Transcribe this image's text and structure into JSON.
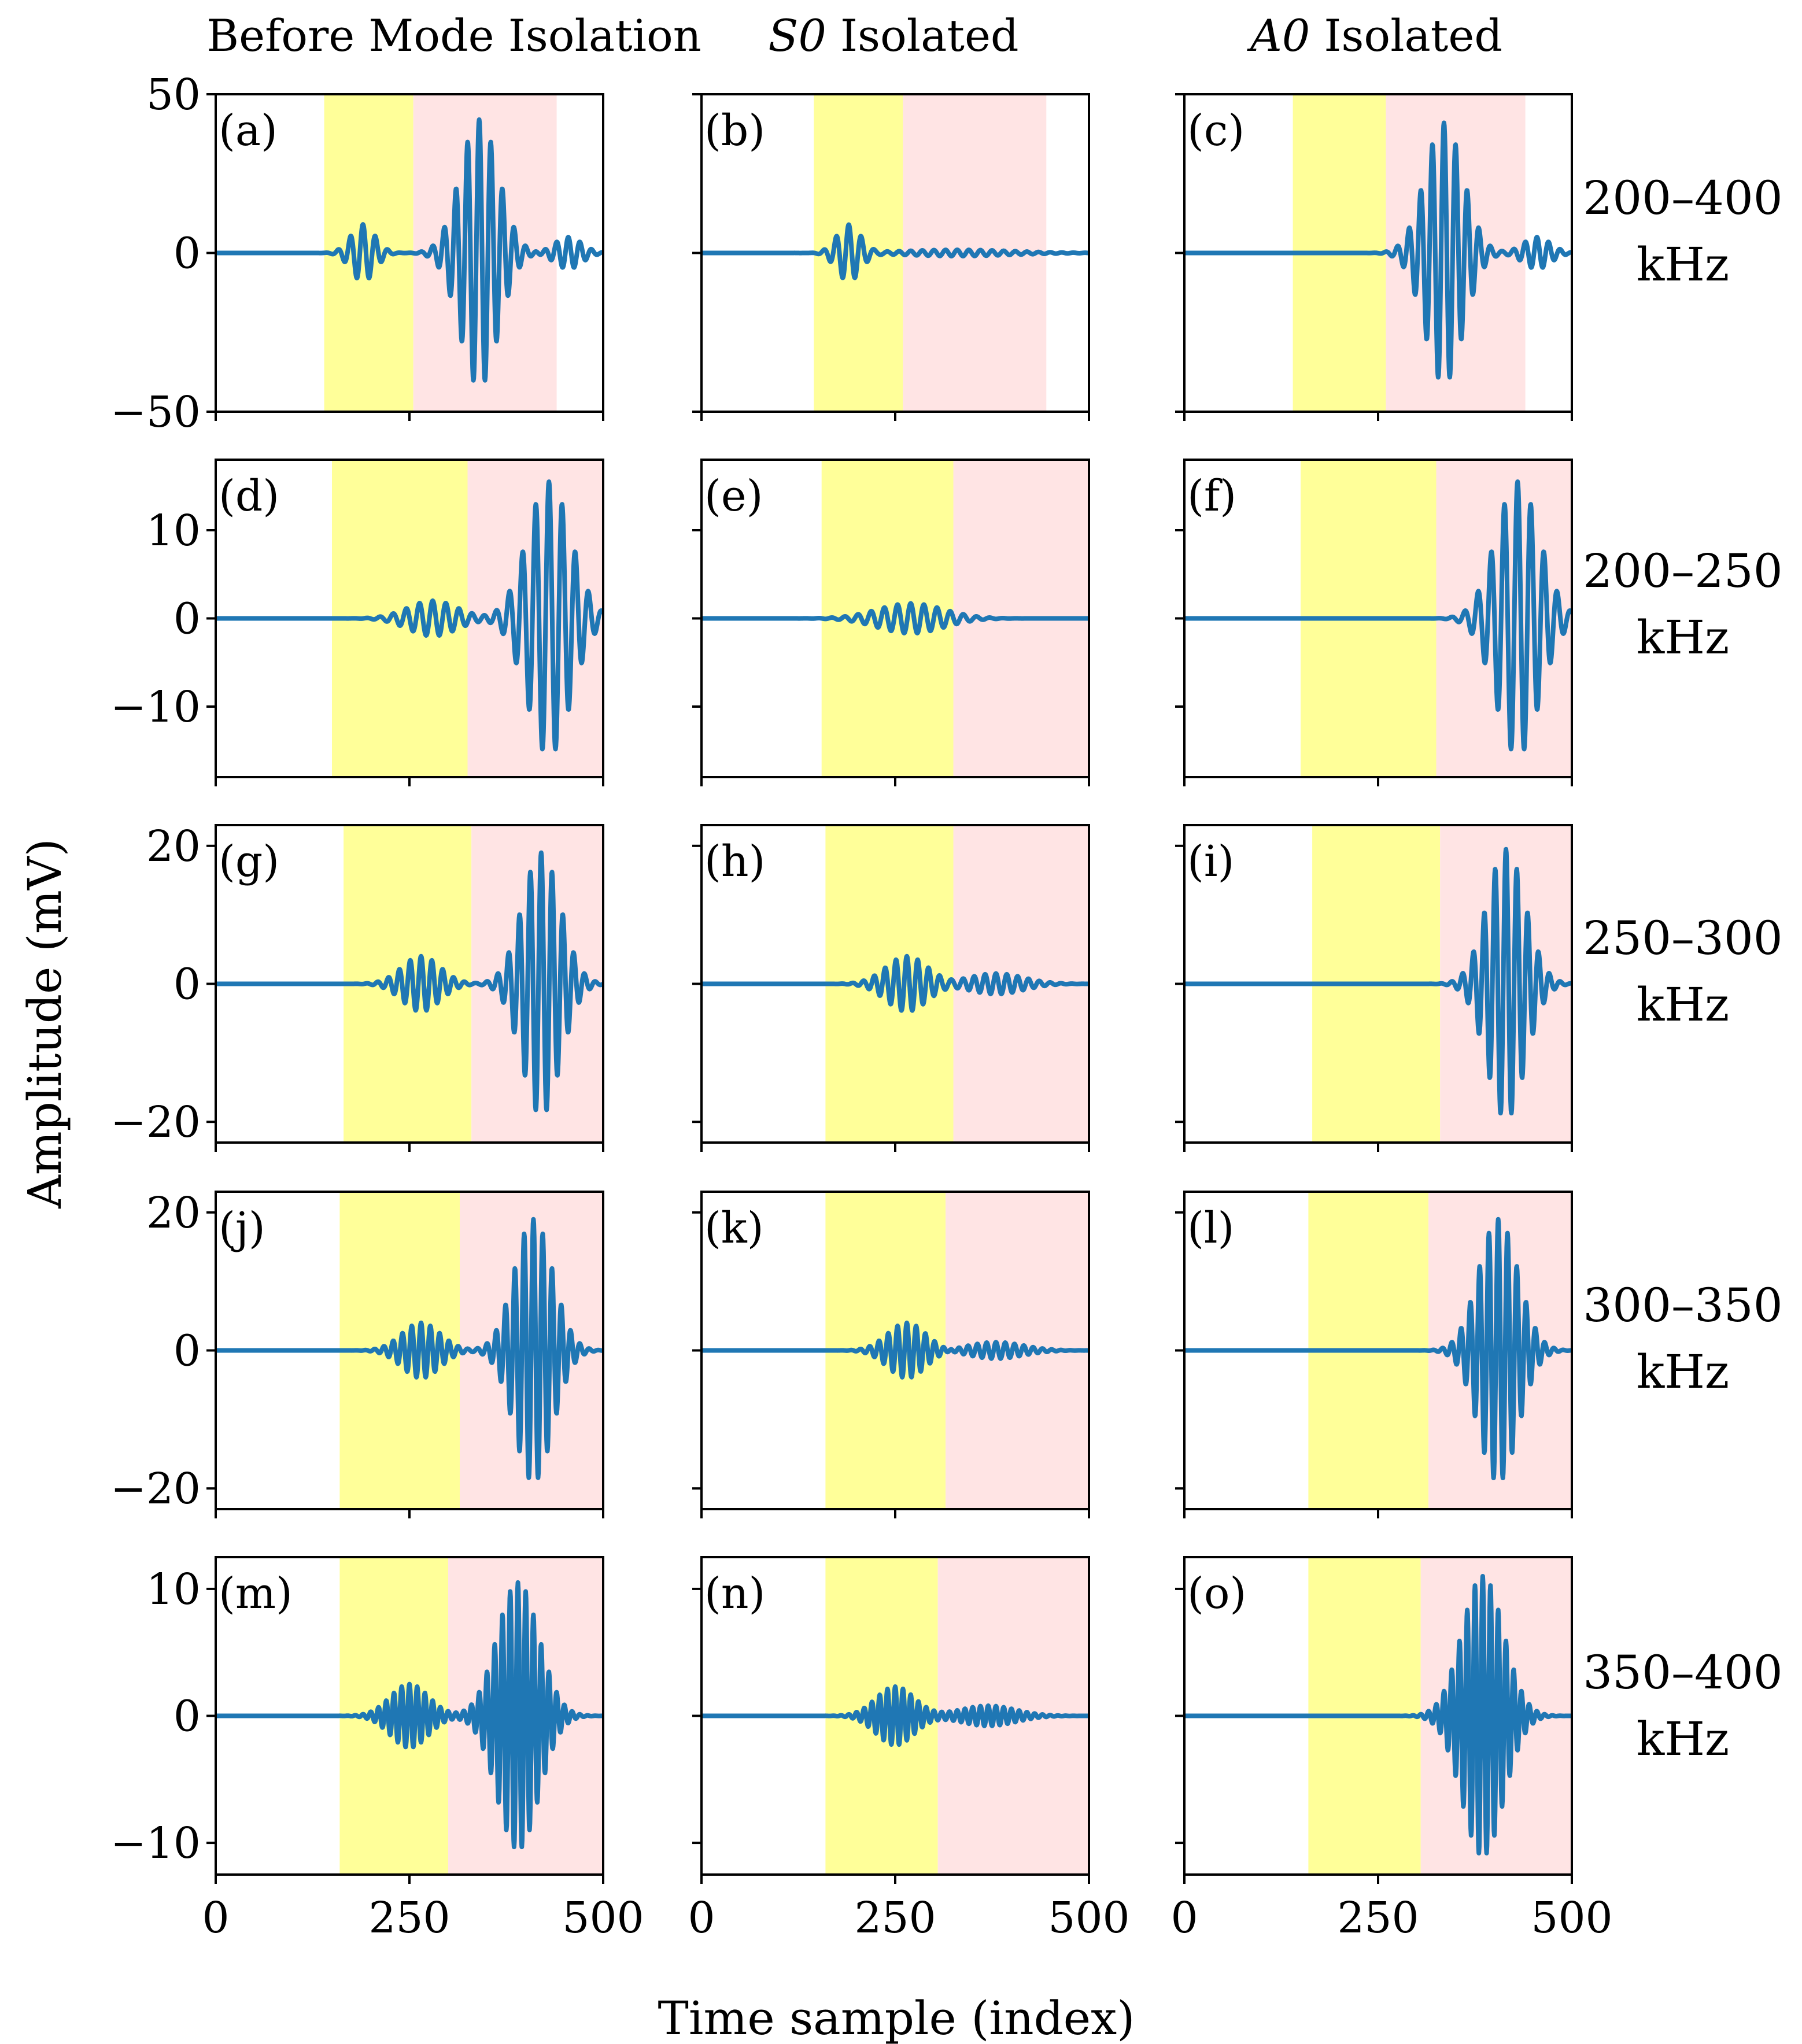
{
  "figure": {
    "column_titles": [
      {
        "mode": "",
        "text": "Before Mode Isolation"
      },
      {
        "mode": "S0",
        "text": " Isolated"
      },
      {
        "mode": "A0",
        "text": " Isolated"
      }
    ],
    "row_labels": [
      {
        "band": "200–400",
        "unit": "kHz"
      },
      {
        "band": "200–250",
        "unit": "kHz"
      },
      {
        "band": "250–300",
        "unit": "kHz"
      },
      {
        "band": "300–350",
        "unit": "kHz"
      },
      {
        "band": "350–400",
        "unit": "kHz"
      }
    ],
    "ylabel": "Amplitude (mV)",
    "xlabel": "Time sample (index)",
    "x_ticks": [
      "0",
      "250",
      "500"
    ],
    "colors": {
      "signal": "#1f77b4",
      "s0_window": "#ffff99",
      "a0_window": "#ffe4e4"
    }
  },
  "chart_data": [
    {
      "type": "line",
      "label": "(a)",
      "row": 0,
      "col": 0,
      "xlim": [
        0,
        500
      ],
      "ylim": [
        -50,
        50
      ],
      "yticks": [
        -50,
        0,
        50
      ],
      "ytick_labels": [
        "50",
        "0",
        "−50"
      ],
      "windows": {
        "s0": [
          140,
          255
        ],
        "a0": [
          255,
          440
        ]
      },
      "packets": [
        {
          "center": 190,
          "width": 22,
          "amp": 9,
          "period": 16
        },
        {
          "center": 340,
          "width": 35,
          "amp": 42,
          "period": 15
        },
        {
          "center": 455,
          "width": 25,
          "amp": 5,
          "period": 15
        }
      ]
    },
    {
      "type": "line",
      "label": "(b)",
      "row": 0,
      "col": 1,
      "xlim": [
        0,
        500
      ],
      "ylim": [
        -50,
        50
      ],
      "yticks": [
        -50,
        0,
        50
      ],
      "windows": {
        "s0": [
          145,
          260
        ],
        "a0": [
          260,
          445
        ]
      },
      "packets": [
        {
          "center": 190,
          "width": 22,
          "amp": 9,
          "period": 16
        },
        {
          "center": 330,
          "width": 100,
          "amp": 1,
          "period": 15
        }
      ]
    },
    {
      "type": "line",
      "label": "(c)",
      "row": 0,
      "col": 2,
      "xlim": [
        0,
        500
      ],
      "ylim": [
        -50,
        50
      ],
      "yticks": [
        -50,
        0,
        50
      ],
      "windows": {
        "s0": [
          140,
          260
        ],
        "a0": [
          260,
          440
        ]
      },
      "packets": [
        {
          "center": 335,
          "width": 35,
          "amp": 41,
          "period": 15
        },
        {
          "center": 455,
          "width": 25,
          "amp": 5,
          "period": 15
        }
      ]
    },
    {
      "type": "line",
      "label": "(d)",
      "row": 1,
      "col": 0,
      "xlim": [
        0,
        500
      ],
      "ylim": [
        -18,
        18
      ],
      "yticks": [
        -10,
        0,
        10
      ],
      "ytick_labels": [
        "10",
        "0",
        "−10"
      ],
      "windows": {
        "s0": [
          150,
          325
        ],
        "a0": [
          325,
          500
        ]
      },
      "packets": [
        {
          "center": 280,
          "width": 45,
          "amp": 2,
          "period": 17
        },
        {
          "center": 430,
          "width": 40,
          "amp": 15.5,
          "period": 17
        }
      ]
    },
    {
      "type": "line",
      "label": "(e)",
      "row": 1,
      "col": 1,
      "xlim": [
        0,
        500
      ],
      "ylim": [
        -18,
        18
      ],
      "yticks": [
        -10,
        0,
        10
      ],
      "windows": {
        "s0": [
          155,
          325
        ],
        "a0": [
          325,
          500
        ]
      },
      "packets": [
        {
          "center": 270,
          "width": 60,
          "amp": 1.7,
          "period": 17
        }
      ]
    },
    {
      "type": "line",
      "label": "(f)",
      "row": 1,
      "col": 2,
      "xlim": [
        0,
        500
      ],
      "ylim": [
        -18,
        18
      ],
      "yticks": [
        -10,
        0,
        10
      ],
      "windows": {
        "s0": [
          150,
          325
        ],
        "a0": [
          325,
          500
        ]
      },
      "packets": [
        {
          "center": 430,
          "width": 40,
          "amp": 15.5,
          "period": 17
        }
      ]
    },
    {
      "type": "line",
      "label": "(g)",
      "row": 2,
      "col": 0,
      "xlim": [
        0,
        500
      ],
      "ylim": [
        -23,
        23
      ],
      "yticks": [
        -20,
        0,
        20
      ],
      "ytick_labels": [
        "20",
        "0",
        "−20"
      ],
      "windows": {
        "s0": [
          165,
          330
        ],
        "a0": [
          330,
          500
        ]
      },
      "packets": [
        {
          "center": 265,
          "width": 35,
          "amp": 4,
          "period": 14
        },
        {
          "center": 420,
          "width": 35,
          "amp": 19,
          "period": 14
        }
      ]
    },
    {
      "type": "line",
      "label": "(h)",
      "row": 2,
      "col": 1,
      "xlim": [
        0,
        500
      ],
      "ylim": [
        -23,
        23
      ],
      "yticks": [
        -20,
        0,
        20
      ],
      "windows": {
        "s0": [
          160,
          325
        ],
        "a0": [
          325,
          500
        ]
      },
      "packets": [
        {
          "center": 265,
          "width": 38,
          "amp": 4,
          "period": 14
        },
        {
          "center": 380,
          "width": 50,
          "amp": 1.5,
          "period": 14
        }
      ]
    },
    {
      "type": "line",
      "label": "(i)",
      "row": 2,
      "col": 2,
      "xlim": [
        0,
        500
      ],
      "ylim": [
        -23,
        23
      ],
      "yticks": [
        -20,
        0,
        20
      ],
      "windows": {
        "s0": [
          165,
          330
        ],
        "a0": [
          330,
          500
        ]
      },
      "packets": [
        {
          "center": 415,
          "width": 35,
          "amp": 19.5,
          "period": 14
        }
      ]
    },
    {
      "type": "line",
      "label": "(j)",
      "row": 3,
      "col": 0,
      "xlim": [
        0,
        500
      ],
      "ylim": [
        -23,
        23
      ],
      "yticks": [
        -20,
        0,
        20
      ],
      "ytick_labels": [
        "20",
        "0",
        "−20"
      ],
      "windows": {
        "s0": [
          160,
          315
        ],
        "a0": [
          315,
          500
        ]
      },
      "packets": [
        {
          "center": 265,
          "width": 35,
          "amp": 4,
          "period": 12
        },
        {
          "center": 410,
          "width": 35,
          "amp": 19,
          "period": 12
        }
      ]
    },
    {
      "type": "line",
      "label": "(k)",
      "row": 3,
      "col": 1,
      "xlim": [
        0,
        500
      ],
      "ylim": [
        -23,
        23
      ],
      "yticks": [
        -20,
        0,
        20
      ],
      "windows": {
        "s0": [
          160,
          315
        ],
        "a0": [
          315,
          500
        ]
      },
      "packets": [
        {
          "center": 265,
          "width": 35,
          "amp": 4,
          "period": 12
        },
        {
          "center": 380,
          "width": 50,
          "amp": 1.2,
          "period": 12
        }
      ]
    },
    {
      "type": "line",
      "label": "(l)",
      "row": 3,
      "col": 2,
      "xlim": [
        0,
        500
      ],
      "ylim": [
        -23,
        23
      ],
      "yticks": [
        -20,
        0,
        20
      ],
      "windows": {
        "s0": [
          160,
          315
        ],
        "a0": [
          315,
          500
        ]
      },
      "packets": [
        {
          "center": 405,
          "width": 36,
          "amp": 19,
          "period": 12
        }
      ]
    },
    {
      "type": "line",
      "label": "(m)",
      "row": 4,
      "col": 0,
      "xlim": [
        0,
        500
      ],
      "ylim": [
        -12.5,
        12.5
      ],
      "yticks": [
        -10,
        0,
        10
      ],
      "ytick_labels": [
        "10",
        "0",
        "−10"
      ],
      "windows": {
        "s0": [
          160,
          300
        ],
        "a0": [
          300,
          500
        ]
      },
      "packets": [
        {
          "center": 250,
          "width": 35,
          "amp": 2.5,
          "period": 10
        },
        {
          "center": 390,
          "width": 38,
          "amp": 10.5,
          "period": 10
        }
      ]
    },
    {
      "type": "line",
      "label": "(n)",
      "row": 4,
      "col": 1,
      "xlim": [
        0,
        500
      ],
      "ylim": [
        -12.5,
        12.5
      ],
      "yticks": [
        -10,
        0,
        10
      ],
      "windows": {
        "s0": [
          160,
          305
        ],
        "a0": [
          305,
          500
        ]
      },
      "packets": [
        {
          "center": 250,
          "width": 35,
          "amp": 2.3,
          "period": 10
        },
        {
          "center": 370,
          "width": 50,
          "amp": 0.8,
          "period": 10
        }
      ]
    },
    {
      "type": "line",
      "label": "(o)",
      "row": 4,
      "col": 2,
      "xlim": [
        0,
        500
      ],
      "ylim": [
        -12.5,
        12.5
      ],
      "yticks": [
        -10,
        0,
        10
      ],
      "windows": {
        "s0": [
          160,
          305
        ],
        "a0": [
          305,
          500
        ]
      },
      "packets": [
        {
          "center": 385,
          "width": 38,
          "amp": 11,
          "period": 10
        }
      ]
    }
  ]
}
